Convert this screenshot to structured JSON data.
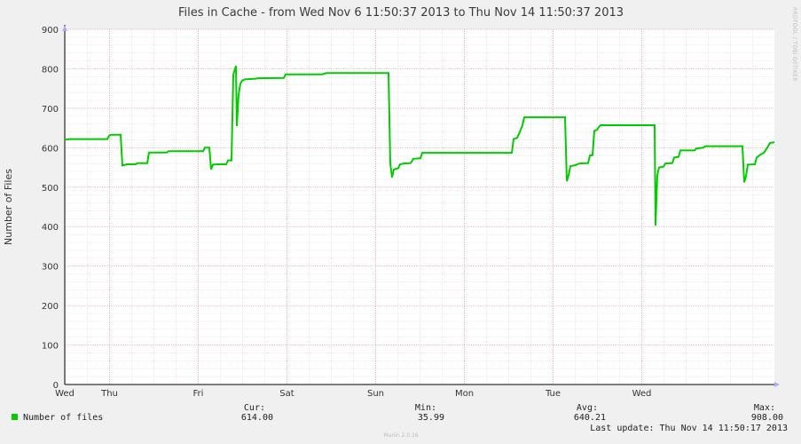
{
  "title": "Files in Cache - from Wed Nov  6 11:50:37 2013 to Thu Nov 14 11:50:37 2013",
  "side_label": "RRDTOOL / TOBI OETIKER",
  "footer": "Munin 2.0.16",
  "last_update": "Last update: Thu Nov 14 11:50:17 2013",
  "legend": {
    "label": "Number of files",
    "color": "#00cc00",
    "stats": [
      {
        "header": "Cur:",
        "value": "614.00"
      },
      {
        "header": "Min:",
        "value": "35.99"
      },
      {
        "header": "Avg:",
        "value": "640.21"
      },
      {
        "header": "Max:",
        "value": "908.00"
      }
    ]
  },
  "colors": {
    "background": "#f0f0f0",
    "plot": "#ffffff",
    "major_grid": "#e0a8a8",
    "minor_grid": "#dddddd",
    "line": "#00cc00",
    "axis": "#000000"
  },
  "chart_data": {
    "type": "line",
    "title": "Files in Cache - from Wed Nov  6 11:50:37 2013 to Thu Nov 14 11:50:37 2013",
    "ylabel": "Number of Files",
    "xlabel": "",
    "ylim": [
      0,
      900
    ],
    "yticks": [
      0,
      100,
      200,
      300,
      400,
      500,
      600,
      700,
      800,
      900
    ],
    "xlim": [
      0,
      8
    ],
    "x_unit": "days from Wed Nov 6 11:50:37 2013",
    "xticks": [
      {
        "label": "Wed",
        "x": 0.0
      },
      {
        "label": "Thu",
        "x": 0.505
      },
      {
        "label": "Fri",
        "x": 1.505
      },
      {
        "label": "Sat",
        "x": 2.505
      },
      {
        "label": "Sun",
        "x": 3.505
      },
      {
        "label": "Mon",
        "x": 4.505
      },
      {
        "label": "Tue",
        "x": 5.505
      },
      {
        "label": "Wed",
        "x": 6.505
      }
    ],
    "grid": true,
    "series": [
      {
        "name": "Number of files",
        "points": [
          [
            0.0,
            620
          ],
          [
            0.05,
            622
          ],
          [
            0.48,
            622
          ],
          [
            0.5,
            630
          ],
          [
            0.52,
            633
          ],
          [
            0.63,
            633
          ],
          [
            0.65,
            555
          ],
          [
            0.7,
            558
          ],
          [
            0.8,
            558
          ],
          [
            0.82,
            561
          ],
          [
            0.93,
            561
          ],
          [
            0.95,
            588
          ],
          [
            1.15,
            588
          ],
          [
            1.17,
            591
          ],
          [
            1.56,
            591
          ],
          [
            1.58,
            600
          ],
          [
            1.63,
            600
          ],
          [
            1.65,
            545
          ],
          [
            1.67,
            557
          ],
          [
            1.72,
            558
          ],
          [
            1.82,
            558
          ],
          [
            1.84,
            568
          ],
          [
            1.88,
            568
          ],
          [
            1.9,
            785
          ],
          [
            1.91,
            793
          ],
          [
            1.93,
            807
          ],
          [
            1.94,
            655
          ],
          [
            1.96,
            735
          ],
          [
            1.98,
            762
          ],
          [
            2.0,
            770
          ],
          [
            2.03,
            773
          ],
          [
            2.15,
            775
          ],
          [
            2.18,
            776
          ],
          [
            2.47,
            777
          ],
          [
            2.49,
            786
          ],
          [
            2.9,
            786
          ],
          [
            2.95,
            789
          ],
          [
            3.65,
            789
          ],
          [
            3.67,
            560
          ],
          [
            3.69,
            525
          ],
          [
            3.71,
            545
          ],
          [
            3.76,
            548
          ],
          [
            3.78,
            558
          ],
          [
            3.82,
            560
          ],
          [
            3.9,
            561
          ],
          [
            3.93,
            572
          ],
          [
            4.01,
            573
          ],
          [
            4.03,
            587
          ],
          [
            5.04,
            587
          ],
          [
            5.06,
            622
          ],
          [
            5.1,
            625
          ],
          [
            5.13,
            640
          ],
          [
            5.16,
            657
          ],
          [
            5.18,
            677
          ],
          [
            5.64,
            677
          ],
          [
            5.66,
            515
          ],
          [
            5.68,
            530
          ],
          [
            5.7,
            553
          ],
          [
            5.76,
            556
          ],
          [
            5.8,
            560
          ],
          [
            5.9,
            561
          ],
          [
            5.92,
            580
          ],
          [
            5.95,
            581
          ],
          [
            5.97,
            643
          ],
          [
            6.0,
            645
          ],
          [
            6.02,
            652
          ],
          [
            6.04,
            657
          ],
          [
            6.65,
            657
          ],
          [
            6.66,
            403
          ],
          [
            6.68,
            530
          ],
          [
            6.7,
            550
          ],
          [
            6.75,
            552
          ],
          [
            6.77,
            560
          ],
          [
            6.85,
            561
          ],
          [
            6.87,
            575
          ],
          [
            6.92,
            577
          ],
          [
            6.94,
            593
          ],
          [
            7.1,
            593
          ],
          [
            7.12,
            598
          ],
          [
            7.2,
            600
          ],
          [
            7.22,
            604
          ],
          [
            7.64,
            604
          ],
          [
            7.66,
            512
          ],
          [
            7.68,
            528
          ],
          [
            7.7,
            557
          ],
          [
            7.78,
            558
          ],
          [
            7.8,
            575
          ],
          [
            7.84,
            582
          ],
          [
            7.88,
            587
          ],
          [
            7.92,
            600
          ],
          [
            7.95,
            612
          ],
          [
            8.0,
            614
          ]
        ]
      }
    ]
  }
}
